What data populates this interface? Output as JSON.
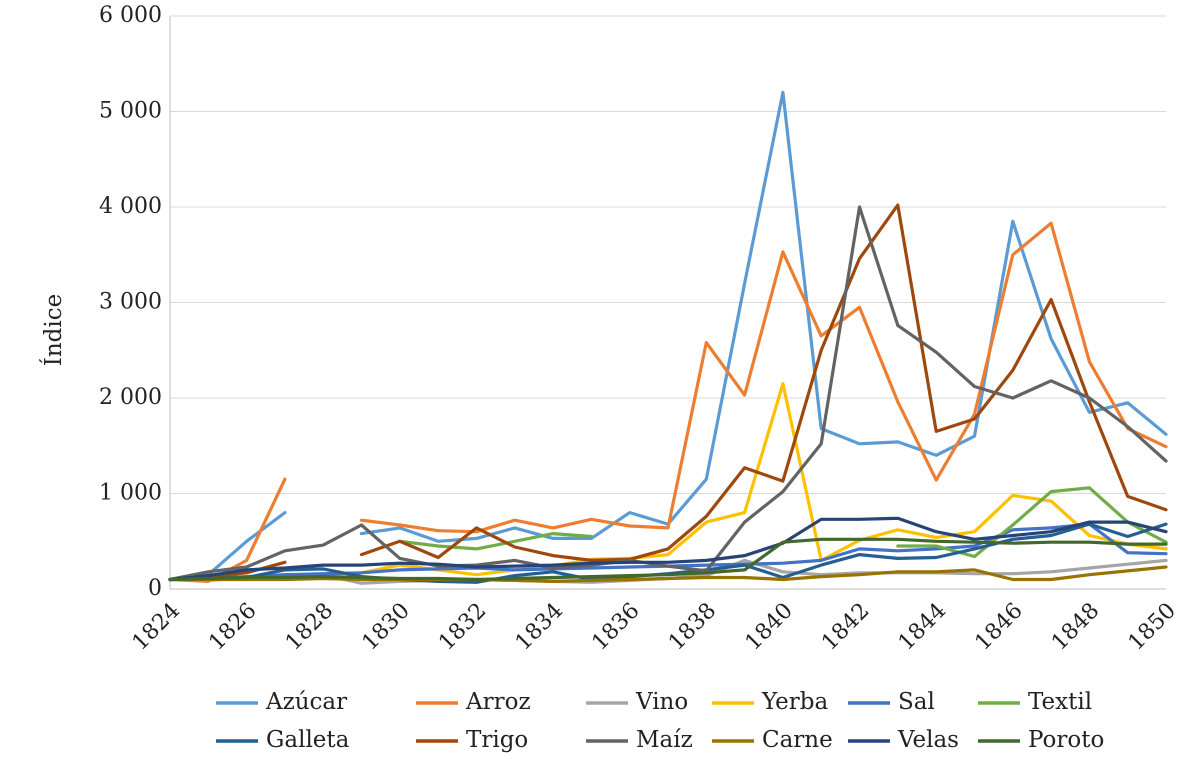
{
  "chart_data": {
    "type": "line",
    "title": "",
    "xlabel": "",
    "ylabel": "Índice",
    "x": [
      1824,
      1825,
      1826,
      1827,
      1828,
      1829,
      1830,
      1831,
      1832,
      1833,
      1834,
      1835,
      1836,
      1837,
      1838,
      1839,
      1840,
      1841,
      1842,
      1843,
      1844,
      1845,
      1846,
      1847,
      1848,
      1849,
      1850
    ],
    "xlim": [
      1824,
      1850
    ],
    "ylim": [
      0,
      6000
    ],
    "yticks": [
      0,
      1000,
      2000,
      3000,
      4000,
      5000,
      6000
    ],
    "ytick_labels": [
      "0",
      "1 000",
      "2 000",
      "3 000",
      "4 000",
      "5 000",
      "6 000"
    ],
    "xticks": [
      1824,
      1826,
      1828,
      1830,
      1832,
      1834,
      1836,
      1838,
      1840,
      1842,
      1844,
      1846,
      1848,
      1850
    ],
    "xtick_labels": [
      "1824",
      "1826",
      "1828",
      "1830",
      "1832",
      "1834",
      "1836",
      "1838",
      "1840",
      "1842",
      "1844",
      "1846",
      "1848",
      "1850"
    ],
    "grid": true,
    "legend_position": "bottom",
    "series": [
      {
        "name": "Azúcar",
        "color": "#5B9BD5",
        "values": [
          100,
          150,
          500,
          800,
          null,
          580,
          640,
          500,
          530,
          640,
          530,
          530,
          800,
          680,
          1150,
          3200,
          5200,
          1680,
          1520,
          1540,
          1400,
          1600,
          3850,
          2620,
          1850,
          1950,
          1620
        ]
      },
      {
        "name": "Arroz",
        "color": "#ED7D31",
        "values": [
          100,
          80,
          300,
          1150,
          null,
          720,
          670,
          610,
          600,
          720,
          640,
          730,
          660,
          640,
          2580,
          2030,
          3530,
          2650,
          2950,
          1960,
          1140,
          1830,
          3500,
          3830,
          2380,
          1680,
          1490
        ]
      },
      {
        "name": "Vino",
        "color": "#A5A5A5",
        "values": [
          100,
          90,
          120,
          150,
          150,
          60,
          80,
          90,
          100,
          90,
          80,
          70,
          90,
          110,
          140,
          300,
          180,
          150,
          170,
          170,
          170,
          160,
          160,
          180,
          220,
          260,
          300
        ]
      },
      {
        "name": "Yerba",
        "color": "#FFC000",
        "values": [
          100,
          110,
          120,
          130,
          150,
          170,
          250,
          200,
          150,
          200,
          240,
          310,
          320,
          360,
          700,
          800,
          2150,
          300,
          510,
          620,
          540,
          600,
          980,
          920,
          560,
          470,
          420
        ]
      },
      {
        "name": "Sal",
        "color": "#4472C4",
        "values": [
          100,
          110,
          130,
          150,
          160,
          170,
          200,
          210,
          220,
          200,
          210,
          220,
          230,
          240,
          250,
          260,
          270,
          300,
          420,
          400,
          420,
          450,
          620,
          640,
          680,
          380,
          370
        ]
      },
      {
        "name": "Textil",
        "color": "#70AD47",
        "values": [
          null,
          null,
          null,
          null,
          null,
          null,
          500,
          450,
          420,
          500,
          580,
          550,
          null,
          null,
          null,
          null,
          null,
          null,
          null,
          450,
          450,
          340,
          670,
          1020,
          1060,
          700,
          490
        ]
      },
      {
        "name": "Galleta",
        "color": "#255E91",
        "values": [
          100,
          110,
          120,
          200,
          210,
          130,
          100,
          80,
          70,
          140,
          180,
          100,
          130,
          160,
          200,
          250,
          120,
          250,
          360,
          320,
          330,
          420,
          520,
          560,
          680,
          550,
          680
        ]
      },
      {
        "name": "Trigo",
        "color": "#9E480E",
        "values": [
          100,
          130,
          170,
          280,
          null,
          360,
          500,
          330,
          640,
          440,
          350,
          300,
          310,
          420,
          760,
          1270,
          1130,
          2500,
          3460,
          4020,
          1650,
          1780,
          2290,
          3030,
          1960,
          970,
          830
        ]
      },
      {
        "name": "Maíz",
        "color": "#636363",
        "values": [
          100,
          180,
          230,
          400,
          460,
          670,
          320,
          240,
          250,
          300,
          220,
          250,
          300,
          240,
          190,
          700,
          1020,
          1520,
          4000,
          2760,
          2480,
          2120,
          2000,
          2180,
          2000,
          1700,
          1340
        ]
      },
      {
        "name": "Carne",
        "color": "#997300",
        "values": [
          100,
          100,
          100,
          100,
          110,
          100,
          100,
          100,
          100,
          90,
          80,
          90,
          100,
          110,
          120,
          120,
          100,
          130,
          150,
          180,
          180,
          200,
          100,
          100,
          150,
          190,
          230
        ]
      },
      {
        "name": "Velas",
        "color": "#264478",
        "values": [
          100,
          140,
          200,
          220,
          250,
          250,
          270,
          260,
          230,
          240,
          250,
          270,
          280,
          280,
          300,
          350,
          480,
          730,
          730,
          740,
          600,
          520,
          560,
          600,
          700,
          700,
          600
        ]
      },
      {
        "name": "Poroto",
        "color": "#43682B",
        "values": [
          100,
          110,
          120,
          120,
          130,
          120,
          110,
          110,
          100,
          110,
          120,
          130,
          140,
          150,
          170,
          200,
          490,
          520,
          520,
          520,
          500,
          490,
          480,
          490,
          490,
          470,
          470
        ]
      }
    ]
  }
}
